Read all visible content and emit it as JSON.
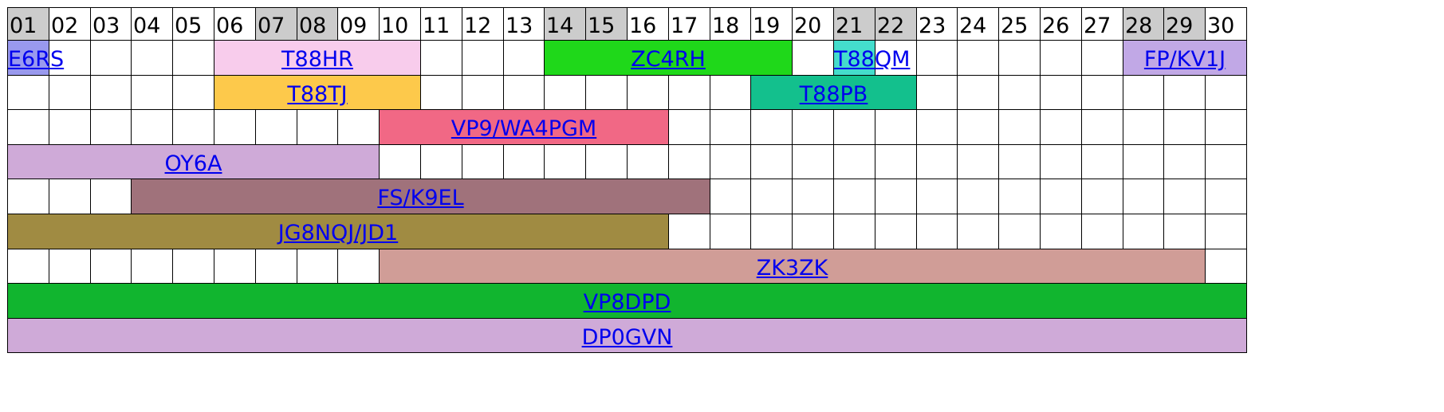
{
  "calendar": {
    "days": [
      "01",
      "02",
      "03",
      "04",
      "05",
      "06",
      "07",
      "08",
      "09",
      "10",
      "11",
      "12",
      "13",
      "14",
      "15",
      "16",
      "17",
      "18",
      "19",
      "20",
      "21",
      "22",
      "23",
      "24",
      "25",
      "26",
      "27",
      "28",
      "29",
      "30"
    ],
    "weekend_days": [
      "01",
      "07",
      "08",
      "14",
      "15",
      "21",
      "22",
      "28",
      "29"
    ],
    "colors": {
      "header_weekend": "#cccccc",
      "header_weekday": "#ffffff",
      "grid_line": "#000000",
      "link": "#0000ee"
    },
    "events": [
      {
        "call": "E6RS",
        "row": 1,
        "start_day": 1,
        "end_day": 1,
        "color": "#9999ee"
      },
      {
        "call": "T88HR",
        "row": 1,
        "start_day": 6,
        "end_day": 10,
        "color": "#f8ccec"
      },
      {
        "call": "ZC4RH",
        "row": 1,
        "start_day": 14,
        "end_day": 19,
        "color": "#1fd81a"
      },
      {
        "call": "T88QM",
        "row": 1,
        "start_day": 21,
        "end_day": 21,
        "color": "#44ddcc"
      },
      {
        "call": "FP/KV1J",
        "row": 1,
        "start_day": 28,
        "end_day": 30,
        "color": "#c1a8e6"
      },
      {
        "call": "T88TJ",
        "row": 2,
        "start_day": 6,
        "end_day": 10,
        "color": "#fdc94b"
      },
      {
        "call": "T88PB",
        "row": 2,
        "start_day": 19,
        "end_day": 22,
        "color": "#13c08d"
      },
      {
        "call": "VP9/WA4PGM",
        "row": 3,
        "start_day": 10,
        "end_day": 16,
        "color": "#f16885"
      },
      {
        "call": "OY6A",
        "row": 4,
        "start_day": 1,
        "end_day": 9,
        "color": "#cfaad8"
      },
      {
        "call": "FS/K9EL",
        "row": 5,
        "start_day": 4,
        "end_day": 17,
        "color": "#a0727b"
      },
      {
        "call": "JG8NQJ/JD1",
        "row": 6,
        "start_day": 1,
        "end_day": 16,
        "color": "#a08b42"
      },
      {
        "call": "ZK3ZK",
        "row": 7,
        "start_day": 10,
        "end_day": 29,
        "color": "#d09d97"
      },
      {
        "call": "VP8DPD",
        "row": 8,
        "start_day": 1,
        "end_day": 30,
        "color": "#11b52f"
      },
      {
        "call": "DP0GVN",
        "row": 9,
        "start_day": 1,
        "end_day": 30,
        "color": "#cfaad8"
      }
    ]
  }
}
